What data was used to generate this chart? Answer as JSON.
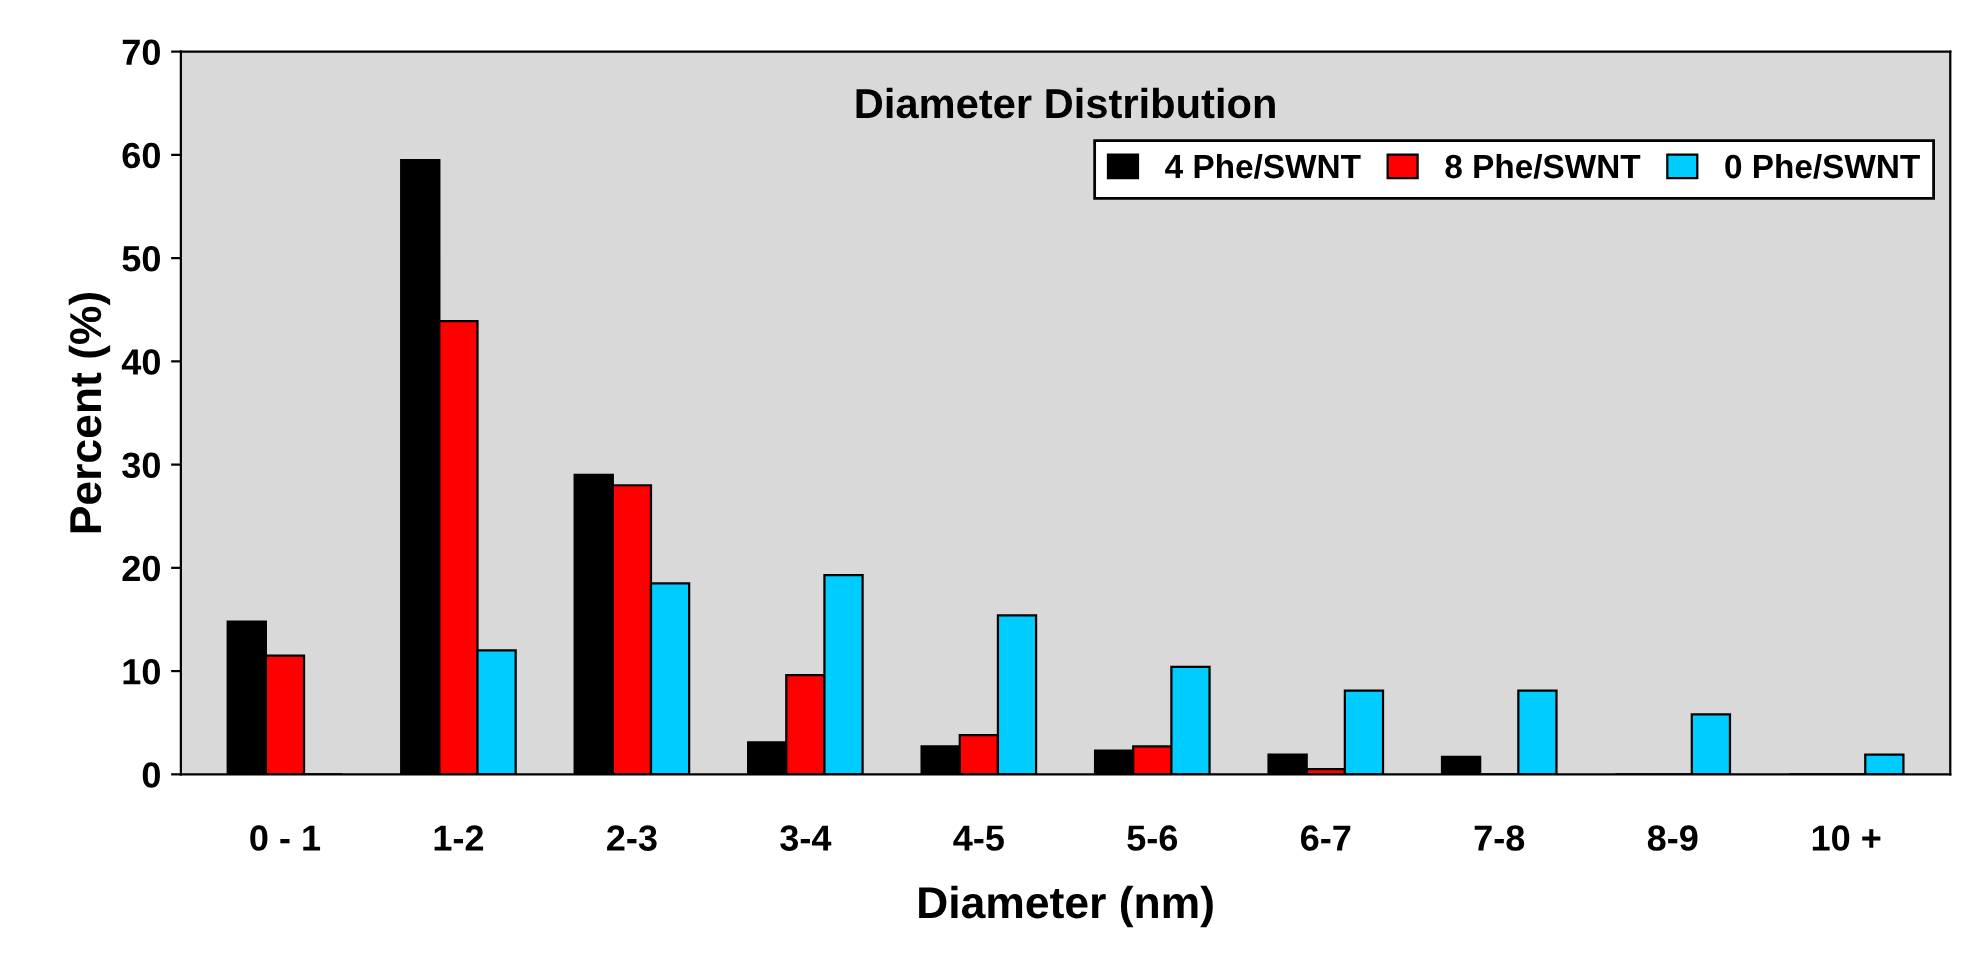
{
  "chart_data": {
    "type": "bar",
    "title": "Diameter Distribution",
    "xlabel": "Diameter (nm)",
    "ylabel": "Percent (%)",
    "categories": [
      "0 - 1",
      "1-2",
      "2-3",
      "3-4",
      "4-5",
      "5-6",
      "6-7",
      "7-8",
      "8-9",
      "10 +"
    ],
    "series": [
      {
        "name": "4 Phe/SWNT",
        "color": "#000000",
        "values": [
          14.8,
          59.5,
          29,
          3.1,
          2.7,
          2.3,
          1.9,
          1.7,
          0,
          0
        ]
      },
      {
        "name": "8 Phe/SWNT",
        "color": "#ff0000",
        "values": [
          11.5,
          43.9,
          28,
          9.6,
          3.8,
          2.7,
          0.5,
          0,
          0,
          0
        ]
      },
      {
        "name": "0 Phe/SWNT",
        "color": "#00ccff",
        "values": [
          0,
          12,
          18.5,
          19.3,
          15.4,
          10.4,
          8.1,
          8.1,
          5.8,
          1.9
        ]
      }
    ],
    "ylim": [
      0,
      70
    ],
    "yticks": [
      0,
      10,
      20,
      30,
      40,
      50,
      60,
      70
    ],
    "grid": false,
    "legend": "top right"
  }
}
